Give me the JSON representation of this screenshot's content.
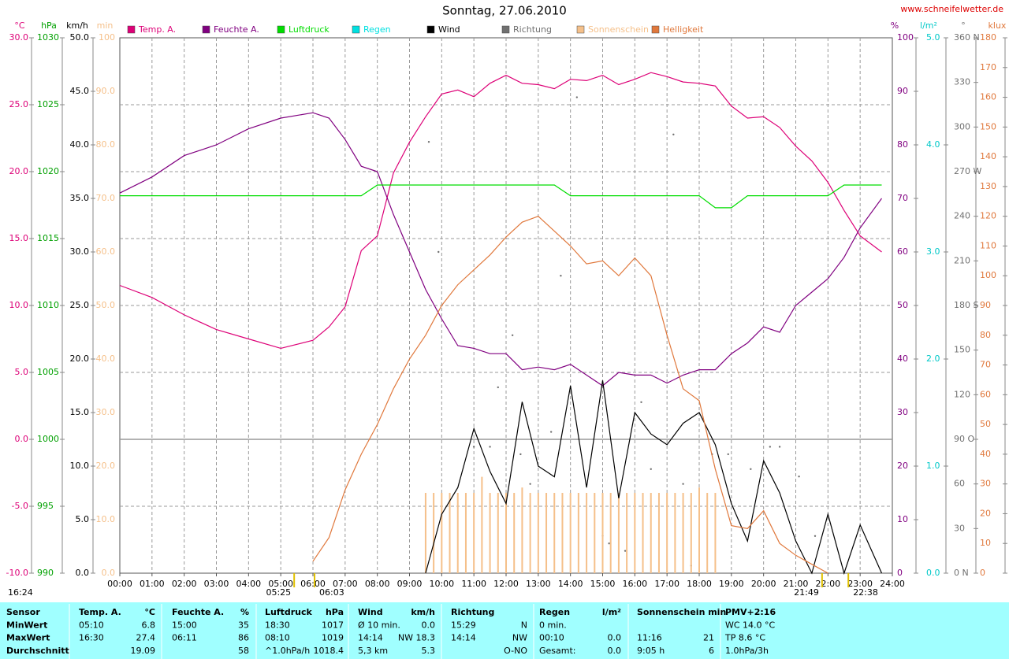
{
  "chart_data": {
    "type": "line",
    "title": "Sonntag, 27.06.2010",
    "source": "www.schneifelwetter.de",
    "day_length": "16:24",
    "sun_events": [
      "05:25",
      "06:03",
      "21:49",
      "22:38"
    ],
    "xlim": [
      0,
      24
    ],
    "xticks": [
      {
        "value": 0,
        "label": "00:00"
      },
      {
        "value": 1,
        "label": "01:00"
      },
      {
        "value": 2,
        "label": "02:00"
      },
      {
        "value": 3,
        "label": "03:00"
      },
      {
        "value": 4,
        "label": "04:00"
      },
      {
        "value": 5,
        "label": "05:00"
      },
      {
        "value": 6,
        "label": "06:00"
      },
      {
        "value": 7,
        "label": "07:00"
      },
      {
        "value": 8,
        "label": "08:00"
      },
      {
        "value": 9,
        "label": "09:00"
      },
      {
        "value": 10,
        "label": "10:00"
      },
      {
        "value": 11,
        "label": "11:00"
      },
      {
        "value": 12,
        "label": "12:00"
      },
      {
        "value": 13,
        "label": "13:00"
      },
      {
        "value": 14,
        "label": "14:00"
      },
      {
        "value": 15,
        "label": "15:00"
      },
      {
        "value": 16,
        "label": "16:00"
      },
      {
        "value": 17,
        "label": "17:00"
      },
      {
        "value": 18,
        "label": "18:00"
      },
      {
        "value": 19,
        "label": "19:00"
      },
      {
        "value": 20,
        "label": "20:00"
      },
      {
        "value": 21,
        "label": "21:00"
      },
      {
        "value": 22,
        "label": "22:00"
      },
      {
        "value": 23,
        "label": "23:00"
      },
      {
        "value": 24,
        "label": "24:00"
      }
    ],
    "grid": true,
    "axes": [
      {
        "unit": "°C",
        "side": "left",
        "color": "#dd0077",
        "ylim": [
          -10,
          30
        ],
        "yticks": [
          {
            "value": -10,
            "label": "-10.0"
          },
          {
            "value": -5,
            "label": "-5.0"
          },
          {
            "value": 0,
            "label": "0.0"
          },
          {
            "value": 5,
            "label": "5.0"
          },
          {
            "value": 10,
            "label": "10.0"
          },
          {
            "value": 15,
            "label": "15.0"
          },
          {
            "value": 20,
            "label": "20.0"
          },
          {
            "value": 25,
            "label": "25.0"
          },
          {
            "value": 30,
            "label": "30.0"
          }
        ]
      },
      {
        "unit": "hPa",
        "side": "left",
        "color": "#00a000",
        "ylim": [
          990,
          1030
        ],
        "yticks": [
          990,
          995,
          1000,
          1005,
          1010,
          1015,
          1020,
          1025,
          1030
        ]
      },
      {
        "unit": "km/h",
        "side": "left",
        "color": "#000000",
        "ylim": [
          0,
          50
        ],
        "yticks": [
          {
            "value": 0,
            "label": "0.0"
          },
          {
            "value": 5,
            "label": "5.0"
          },
          {
            "value": 10,
            "label": "10.0"
          },
          {
            "value": 15,
            "label": "15.0"
          },
          {
            "value": 20,
            "label": "20.0"
          },
          {
            "value": 25,
            "label": "25.0"
          },
          {
            "value": 30,
            "label": "30.0"
          },
          {
            "value": 35,
            "label": "35.0"
          },
          {
            "value": 40,
            "label": "40.0"
          },
          {
            "value": 45,
            "label": "45.0"
          },
          {
            "value": 50,
            "label": "50.0"
          }
        ]
      },
      {
        "unit": "min",
        "side": "left",
        "color": "#f5c08a",
        "ylim": [
          0,
          100
        ],
        "yticks": [
          {
            "value": 0,
            "label": "0.0"
          },
          {
            "value": 10,
            "label": "10.0"
          },
          {
            "value": 20,
            "label": "20.0"
          },
          {
            "value": 30,
            "label": "30.0"
          },
          {
            "value": 40,
            "label": "40.0"
          },
          {
            "value": 50,
            "label": "50.0"
          },
          {
            "value": 60,
            "label": "60.0"
          },
          {
            "value": 70,
            "label": "70.0"
          },
          {
            "value": 80,
            "label": "80.0"
          },
          {
            "value": 90,
            "label": "90.0"
          },
          100
        ]
      },
      {
        "unit": "%",
        "side": "right",
        "color": "#800080",
        "ylim": [
          0,
          100
        ],
        "yticks": [
          0,
          10,
          20,
          30,
          40,
          50,
          60,
          70,
          80,
          90,
          100
        ]
      },
      {
        "unit": "l/m²",
        "side": "right",
        "color": "#00c8c8",
        "ylim": [
          0,
          5
        ],
        "yticks": [
          {
            "value": 0,
            "label": "0.0"
          },
          {
            "value": 1,
            "label": "1.0"
          },
          {
            "value": 2,
            "label": "2.0"
          },
          {
            "value": 3,
            "label": "3.0"
          },
          {
            "value": 4,
            "label": "4.0"
          },
          {
            "value": 5,
            "label": "5.0"
          }
        ]
      },
      {
        "unit": "°",
        "side": "right",
        "color": "#707070",
        "ylim": [
          0,
          360
        ],
        "yticks": [
          {
            "value": 0,
            "label": "0 N"
          },
          30,
          60,
          {
            "value": 90,
            "label": "90 O"
          },
          120,
          150,
          {
            "value": 180,
            "label": "180 S"
          },
          210,
          240,
          {
            "value": 270,
            "label": "270 W"
          },
          300,
          330,
          {
            "value": 360,
            "label": "360 N"
          }
        ]
      },
      {
        "unit": "klux",
        "side": "right",
        "color": "#e0783c",
        "ylim": [
          0,
          180
        ],
        "yticks": [
          0,
          10,
          20,
          30,
          40,
          50,
          60,
          70,
          80,
          90,
          100,
          110,
          120,
          130,
          140,
          150,
          160,
          170,
          180
        ]
      }
    ],
    "x": [
      0,
      1,
      2,
      3,
      4,
      5,
      6,
      6.5,
      7,
      7.5,
      8,
      8.5,
      9,
      9.5,
      10,
      10.5,
      11,
      11.5,
      12,
      12.5,
      13,
      13.5,
      14,
      14.5,
      15,
      15.5,
      16,
      16.5,
      17,
      17.5,
      18,
      18.5,
      19,
      19.5,
      20,
      20.5,
      21,
      21.5,
      22,
      22.5,
      23,
      23.67
    ],
    "series": [
      {
        "name": "Temp. A.",
        "color": "#dd0077",
        "type": "line",
        "axis": "°C",
        "values": [
          11.5,
          10.6,
          9.3,
          8.2,
          7.5,
          6.8,
          7.4,
          8.4,
          9.9,
          14.1,
          15.2,
          19.9,
          22.2,
          24.1,
          25.8,
          26.1,
          25.6,
          26.6,
          27.2,
          26.6,
          26.5,
          26.2,
          26.9,
          26.8,
          27.2,
          26.5,
          26.9,
          27.4,
          27.1,
          26.7,
          26.6,
          26.4,
          24.9,
          24.0,
          24.1,
          23.3,
          21.9,
          20.8,
          19.2,
          17.1,
          15.2,
          14.0
        ]
      },
      {
        "name": "Feuchte A.",
        "color": "#800080",
        "type": "line",
        "axis": "%",
        "values": [
          71,
          74,
          78,
          80,
          83,
          85,
          86,
          85,
          81,
          76,
          75,
          67,
          60,
          53,
          47.5,
          42.5,
          42,
          41,
          41,
          38,
          38.5,
          38,
          39,
          37,
          35,
          37.5,
          37,
          37,
          35.5,
          37,
          38,
          38,
          41,
          43,
          46,
          45,
          50,
          52.5,
          55,
          59,
          64.5,
          70
        ]
      },
      {
        "name": "Luftdruck",
        "color": "#00dd00",
        "type": "line",
        "axis": "hPa",
        "values": [
          1018.2,
          1018.2,
          1018.2,
          1018.2,
          1018.2,
          1018.2,
          1018.2,
          1018.2,
          1018.2,
          1018.2,
          1019,
          1019,
          1019,
          1019,
          1019,
          1019,
          1019,
          1019,
          1019,
          1019,
          1019,
          1019,
          1018.2,
          1018.2,
          1018.2,
          1018.2,
          1018.2,
          1018.2,
          1018.2,
          1018.2,
          1018.2,
          1017.3,
          1017.3,
          1018.2,
          1018.2,
          1018.2,
          1018.2,
          1018.2,
          1018.2,
          1019,
          1019,
          1019
        ]
      },
      {
        "name": "Regen",
        "color": "#00e0e0"
      },
      {
        "name": "Wind",
        "color": "#000000",
        "type": "line",
        "axis": "km/h",
        "values": [
          null,
          null,
          null,
          null,
          null,
          null,
          null,
          null,
          null,
          null,
          null,
          null,
          null,
          0,
          5.5,
          8,
          13.5,
          9.5,
          6.5,
          16,
          10,
          9,
          17.5,
          8,
          18,
          7,
          15,
          13,
          12,
          14,
          15,
          12,
          6.5,
          3,
          10.5,
          7.5,
          3,
          0,
          5.5,
          0,
          4.5,
          0
        ]
      },
      {
        "name": "Richtung",
        "color": "#707070",
        "type": "scatter",
        "axis": "°",
        "x": [
          9.6,
          9.9,
          11.0,
          11.5,
          11.75,
          12.2,
          12.45,
          12.75,
          13.4,
          13.7,
          14.2,
          15.0,
          15.2,
          15.7,
          16.2,
          16.5,
          17.2,
          17.5,
          17.75,
          18.4,
          18.9,
          19.6,
          20.2,
          20.5,
          21.1,
          21.6
        ],
        "values": [
          290,
          216,
          85,
          85,
          125,
          160,
          80,
          60,
          95,
          200,
          320,
          25,
          20,
          15,
          115,
          70,
          295,
          60,
          5,
          80,
          80,
          70,
          85,
          85,
          65,
          25
        ]
      },
      {
        "name": "Sonnenschein",
        "color": "#f5c08a",
        "type": "bar",
        "axis": "min",
        "x": [
          9.5,
          9.75,
          10,
          10.25,
          10.5,
          10.75,
          11,
          11.25,
          11.5,
          11.75,
          12,
          12.25,
          12.5,
          12.75,
          13,
          13.25,
          13.5,
          13.75,
          14,
          14.25,
          14.5,
          14.75,
          15,
          15.25,
          15.5,
          15.75,
          16,
          16.25,
          16.5,
          16.75,
          17,
          17.25,
          17.5,
          17.75,
          18,
          18.25,
          18.5
        ],
        "values": [
          15,
          15,
          15,
          15,
          15,
          15,
          15,
          18,
          15,
          15,
          15,
          15,
          16,
          15,
          15,
          15,
          15,
          15,
          15,
          15,
          15,
          15,
          15,
          15,
          15,
          15,
          15,
          15,
          15,
          15,
          15,
          15,
          15,
          15,
          16,
          15,
          15
        ]
      },
      {
        "name": "Helligkeit",
        "color": "#e0783c",
        "type": "line",
        "axis": "klux",
        "values": [
          null,
          null,
          null,
          null,
          null,
          null,
          4,
          12,
          28,
          40,
          50,
          62,
          72,
          80,
          90,
          97,
          102,
          107,
          113,
          118,
          120,
          115,
          110,
          104,
          105,
          100,
          106,
          100,
          80,
          62,
          58,
          35,
          16,
          15,
          21,
          10,
          6,
          3,
          0,
          null,
          null,
          null
        ]
      }
    ]
  },
  "table": {
    "rows": [
      [
        "Sensor",
        "Temp. A.",
        "°C",
        "Feuchte A.",
        "%",
        "Luftdruck",
        "hPa",
        "Wind",
        "km/h",
        "Richtung",
        "Regen",
        "l/m²",
        "Sonnenschein min",
        "PMV+2:16"
      ],
      [
        "MinWert",
        "05:10",
        "6.8",
        "15:00",
        "35",
        "18:30",
        "1017",
        "Ø 10 min.",
        "0.0",
        "15:29",
        "N",
        "0 min.",
        "WC 14.0 °C"
      ],
      [
        "MaxWert",
        "16:30",
        "27.4",
        "06:11",
        "86",
        "08:10",
        "1019",
        "14:14",
        "NW 18.3",
        "14:14",
        "NW",
        "00:10",
        "0.0",
        "11:16",
        "21",
        "TP 8.6 °C"
      ],
      [
        "Durchschnitt",
        "19.09",
        "58",
        "^1.0hPa/h",
        "1018.4",
        "5,3 km",
        "5.3",
        "O-NO",
        "Gesamt:",
        "0.0",
        "9:05 h",
        "6",
        "1.0hPa/3h"
      ]
    ]
  }
}
